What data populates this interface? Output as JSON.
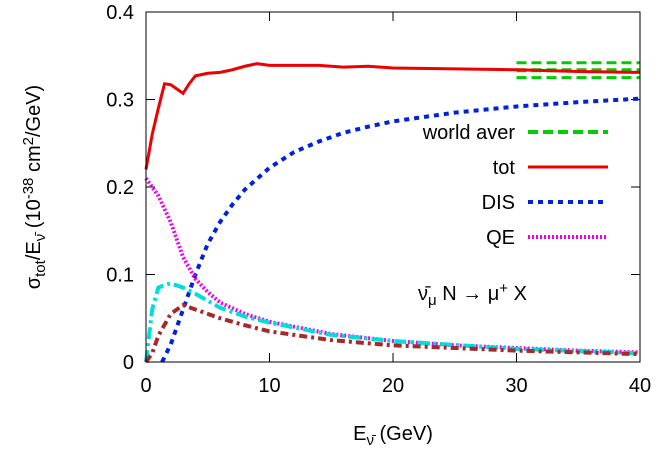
{
  "chart_data": {
    "type": "line",
    "xlabel": [
      {
        "text": "E"
      },
      {
        "text": "ν̄",
        "shift": "sub"
      },
      {
        "text": " (GeV)"
      }
    ],
    "ylabel": [
      {
        "text": "σ"
      },
      {
        "text": "tot",
        "shift": "sub"
      },
      {
        "text": "/E"
      },
      {
        "text": "ν̄",
        "shift": "sub"
      },
      {
        "text": " (10"
      },
      {
        "text": "-38",
        "shift": "sup"
      },
      {
        "text": " cm"
      },
      {
        "text": "2",
        "shift": "sup"
      },
      {
        "text": "/GeV)"
      }
    ],
    "annotation": [
      {
        "text": "ν̄"
      },
      {
        "text": "μ",
        "shift": "sub"
      },
      {
        "text": " N → μ"
      },
      {
        "text": "+",
        "shift": "sup"
      },
      {
        "text": "  X"
      }
    ],
    "xlim": [
      0,
      40
    ],
    "xticks": [
      0,
      10,
      20,
      30,
      40
    ],
    "ylim": [
      0,
      0.4
    ],
    "yticks": [
      0,
      0.1,
      0.2,
      0.3,
      0.4
    ],
    "series": [
      {
        "name": "world aver",
        "color": "#00cc00",
        "dash": "10,5",
        "x": [
          30,
          40
        ],
        "values": [
          0.3335,
          0.3335
        ],
        "err": 0.0085
      },
      {
        "name": "tot",
        "color": "#ee0000",
        "dash": "none",
        "x": [
          0,
          0.5,
          1,
          1.5,
          2,
          2.5,
          3,
          3.5,
          4,
          5,
          6,
          7,
          8,
          9,
          10,
          12,
          14,
          16,
          18,
          20,
          25,
          30,
          35,
          40
        ],
        "values": [
          0.22,
          0.26,
          0.29,
          0.318,
          0.317,
          0.312,
          0.307,
          0.318,
          0.327,
          0.33,
          0.331,
          0.334,
          0.338,
          0.341,
          0.339,
          0.339,
          0.339,
          0.337,
          0.338,
          0.336,
          0.335,
          0.334,
          0.332,
          0.331
        ]
      },
      {
        "name": "DIS",
        "color": "#0022dd",
        "dash": "5,5",
        "x": [
          1.3,
          2,
          3,
          4,
          5,
          6,
          7,
          8,
          10,
          12,
          14,
          16,
          18,
          20,
          25,
          30,
          35,
          40
        ],
        "values": [
          0,
          0.02,
          0.06,
          0.1,
          0.135,
          0.16,
          0.18,
          0.197,
          0.222,
          0.24,
          0.252,
          0.262,
          0.269,
          0.275,
          0.285,
          0.292,
          0.297,
          0.301
        ]
      },
      {
        "name": "QE",
        "color": "#ee00ee",
        "dash": "2,2",
        "x": [
          0,
          1,
          2,
          3,
          4,
          5,
          6,
          8,
          10,
          15,
          20,
          25,
          30,
          35,
          40
        ],
        "values": [
          0.21,
          0.19,
          0.16,
          0.12,
          0.095,
          0.08,
          0.068,
          0.055,
          0.046,
          0.032,
          0.024,
          0.019,
          0.016,
          0.013,
          0.011
        ]
      },
      {
        "color": "#00dddd",
        "dash": "12,4,3,4",
        "x": [
          0,
          0.5,
          1,
          1.5,
          2,
          3,
          4,
          6,
          8,
          10,
          15,
          20,
          30,
          40
        ],
        "values": [
          0,
          0.06,
          0.085,
          0.088,
          0.09,
          0.085,
          0.078,
          0.062,
          0.052,
          0.045,
          0.031,
          0.024,
          0.015,
          0.01
        ]
      },
      {
        "color": "#a52a2a",
        "dash": "8,4,3,4",
        "x": [
          0,
          0.5,
          1,
          2,
          3,
          4,
          6,
          8,
          10,
          15,
          20,
          30,
          40
        ],
        "values": [
          0,
          0.01,
          0.03,
          0.055,
          0.065,
          0.06,
          0.05,
          0.042,
          0.035,
          0.025,
          0.019,
          0.013,
          0.009
        ]
      }
    ]
  }
}
